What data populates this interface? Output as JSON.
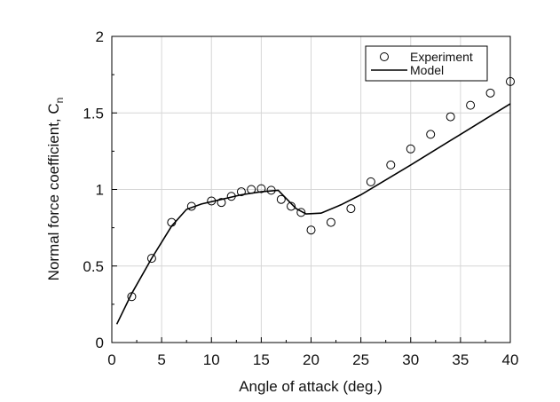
{
  "chart_data": {
    "type": "line",
    "xlabel": "Angle of attack (deg.)",
    "ylabel": "Normal force coefficient, C",
    "ylabel_subscript": "n",
    "xlim": [
      0,
      40
    ],
    "ylim": [
      0,
      2
    ],
    "xticks": [
      0,
      5,
      10,
      15,
      20,
      25,
      30,
      35,
      40
    ],
    "yticks": [
      0,
      0.5,
      1,
      1.5,
      2
    ],
    "ytick_labels": [
      "0",
      "0.5",
      "1",
      "1.5",
      "2"
    ],
    "grid": true,
    "legend_position": "top-right",
    "series": [
      {
        "name": "Experiment",
        "style": "open-circle-markers",
        "x": [
          2,
          4,
          6,
          8,
          10,
          11,
          12,
          13,
          14,
          15,
          16,
          17,
          18,
          19,
          20,
          22,
          24,
          26,
          28,
          30,
          32,
          34,
          36,
          38,
          40
        ],
        "y": [
          0.3,
          0.55,
          0.785,
          0.89,
          0.925,
          0.915,
          0.955,
          0.985,
          1.0,
          1.005,
          0.995,
          0.935,
          0.89,
          0.85,
          0.735,
          0.785,
          0.875,
          1.05,
          1.16,
          1.265,
          1.36,
          1.475,
          1.55,
          1.63,
          1.705
        ]
      },
      {
        "name": "Model",
        "style": "solid-line",
        "x": [
          0.5,
          2,
          4,
          6,
          7.5,
          9,
          11,
          13,
          15,
          16.7,
          17.3,
          18.5,
          19.5,
          21,
          23,
          25,
          30,
          35,
          40
        ],
        "y": [
          0.12,
          0.32,
          0.55,
          0.76,
          0.87,
          0.905,
          0.935,
          0.965,
          0.985,
          0.995,
          0.955,
          0.875,
          0.84,
          0.845,
          0.9,
          0.965,
          1.16,
          1.36,
          1.56
        ]
      }
    ]
  }
}
